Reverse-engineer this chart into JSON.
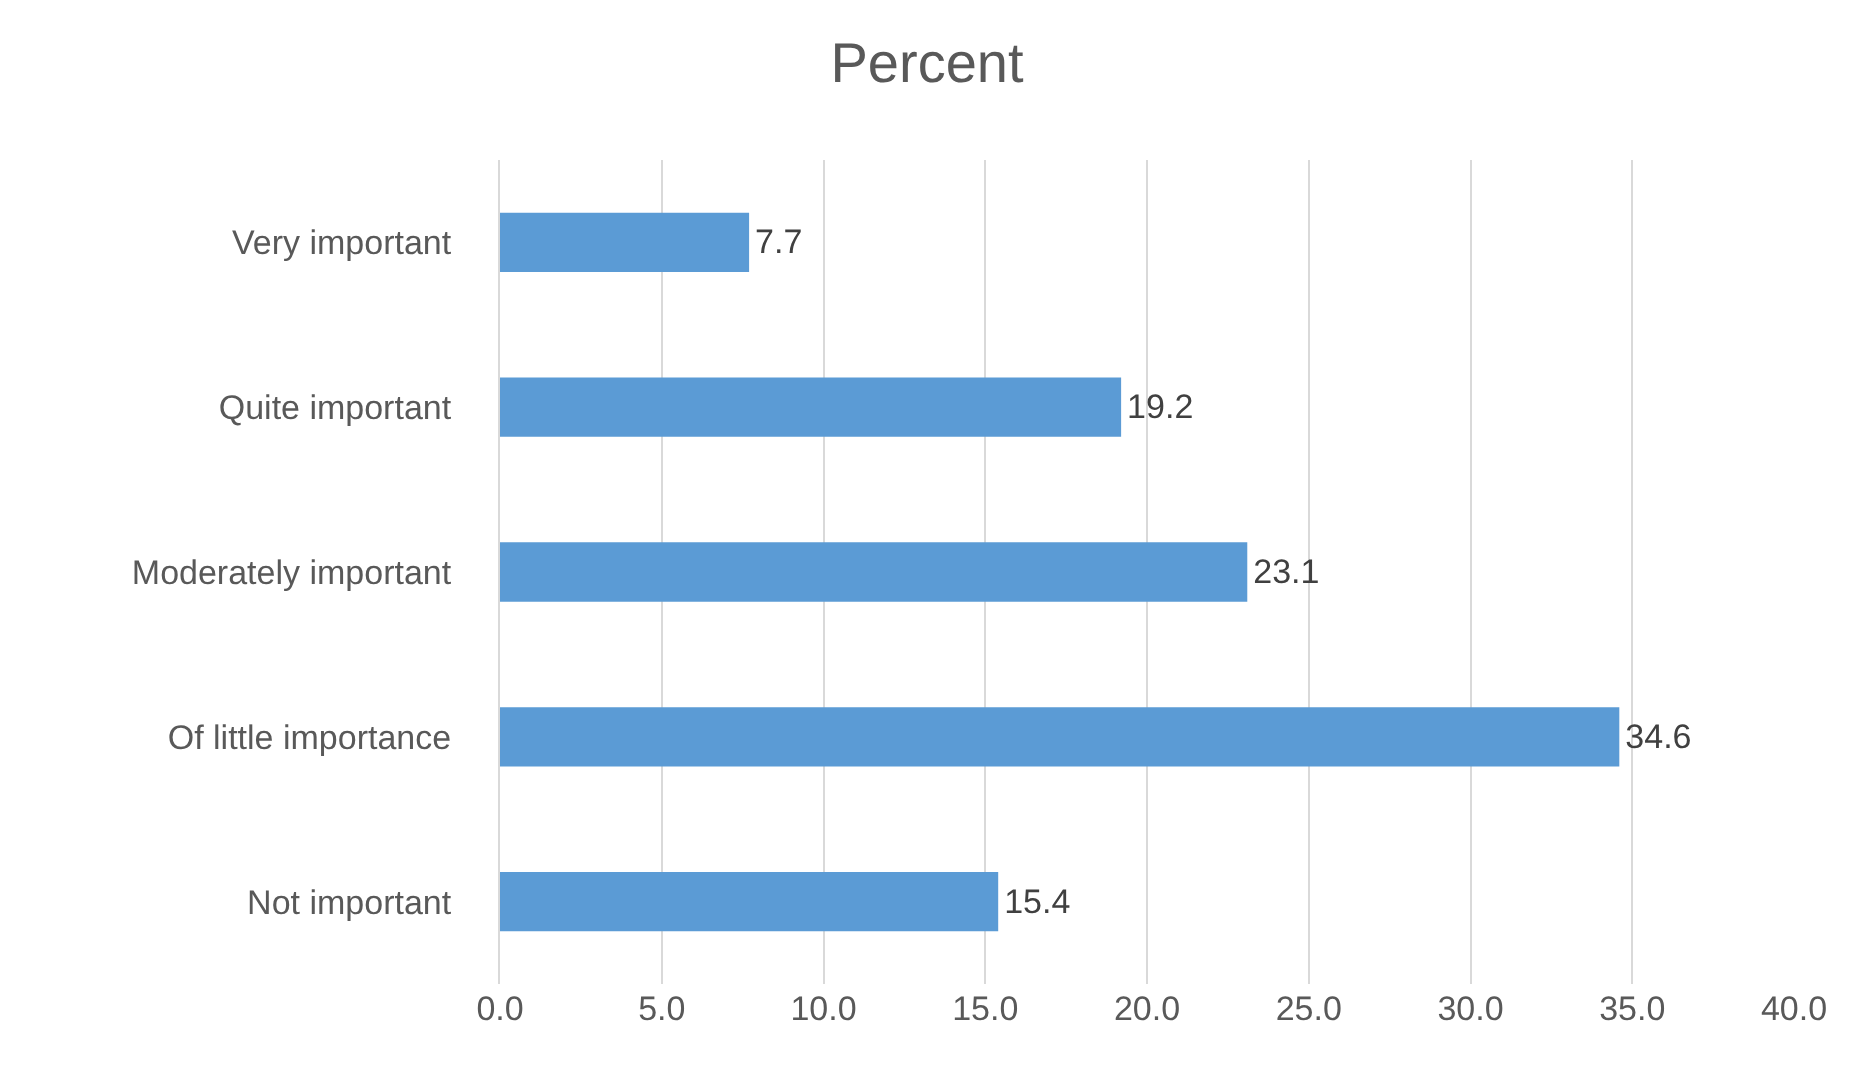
{
  "chart_data": {
    "type": "bar",
    "orientation": "horizontal",
    "title": "Percent",
    "categories": [
      "Very important",
      "Quite important",
      "Moderately important",
      "Of little importance",
      "Not important"
    ],
    "values": [
      7.7,
      19.2,
      23.1,
      34.6,
      15.4
    ],
    "color": "#5b9bd5",
    "xlim": [
      0,
      40
    ],
    "xticks": [
      {
        "value": 0,
        "label": "0.0"
      },
      {
        "value": 5,
        "label": "5.0"
      },
      {
        "value": 10,
        "label": "10.0"
      },
      {
        "value": 15,
        "label": "15.0"
      },
      {
        "value": 20,
        "label": "20.0"
      },
      {
        "value": 25,
        "label": "25.0"
      },
      {
        "value": 30,
        "label": "30.0"
      },
      {
        "value": 35,
        "label": "35.0"
      },
      {
        "value": 40,
        "label": "40.0"
      }
    ],
    "grid": "x",
    "data_labels": true
  }
}
